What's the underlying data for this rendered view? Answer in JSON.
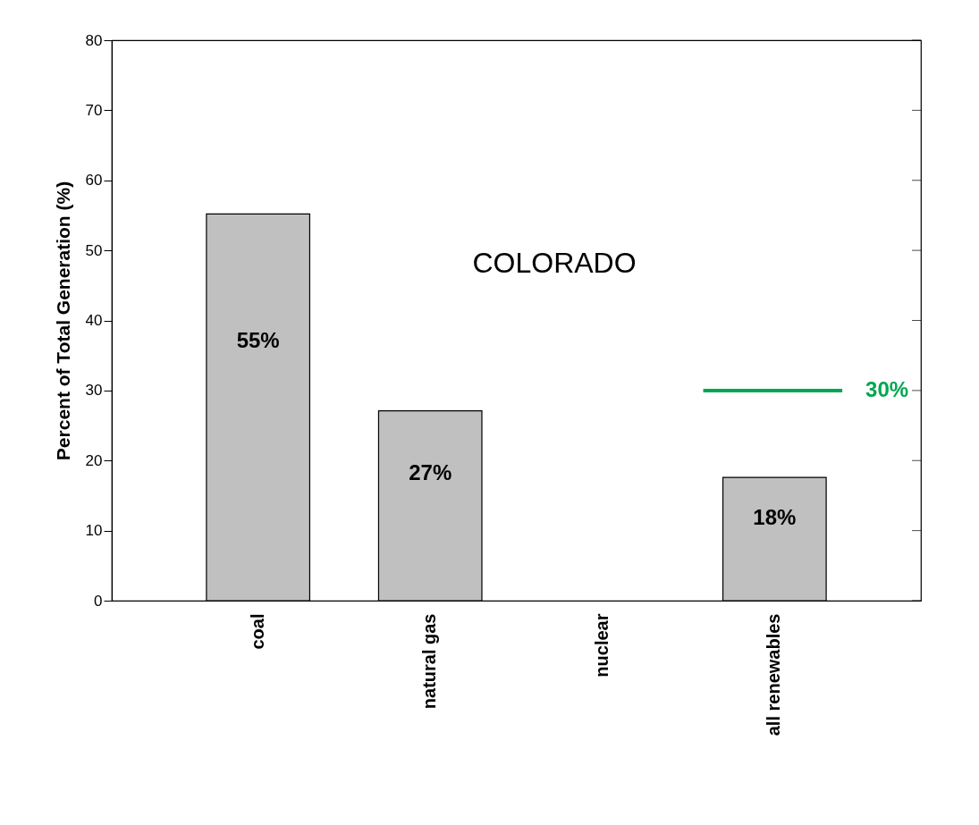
{
  "chart_data": {
    "type": "bar",
    "ylabel": "Percent of Total Generation (%)",
    "categories": [
      "coal",
      "natural gas",
      "nuclear",
      "all renewables"
    ],
    "values": [
      55.2,
      27.1,
      0,
      17.6
    ],
    "color": "#c0c0c0",
    "value_labels": [
      "55%",
      "27%",
      null,
      "18%"
    ],
    "ylim": [
      0,
      80
    ],
    "yticks": [
      0,
      10,
      20,
      30,
      40,
      50,
      60,
      70,
      80
    ],
    "grid": false,
    "ref_lines": [
      {
        "axis": "y",
        "value": 30,
        "label": "30%",
        "color": "#00a651"
      }
    ],
    "annotations": [
      "COLORADO"
    ]
  }
}
